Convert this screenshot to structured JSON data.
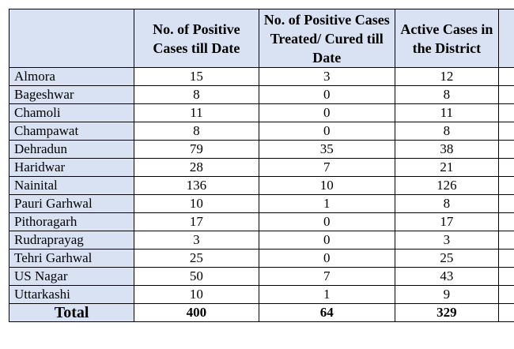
{
  "headers": {
    "district": "",
    "positive": "No. of Positive Cases till Date",
    "cured": "No. of Positive Cases Treated/ Cured till Date",
    "active": "Active Cases in the District"
  },
  "rows": [
    {
      "district": "Almora",
      "positive": "15",
      "cured": "3",
      "active": "12"
    },
    {
      "district": "Bageshwar",
      "positive": "8",
      "cured": "0",
      "active": "8"
    },
    {
      "district": "Chamoli",
      "positive": "11",
      "cured": "0",
      "active": "11"
    },
    {
      "district": "Champawat",
      "positive": "8",
      "cured": "0",
      "active": "8"
    },
    {
      "district": "Dehradun",
      "positive": "79",
      "cured": "35",
      "active": "38"
    },
    {
      "district": "Haridwar",
      "positive": "28",
      "cured": "7",
      "active": "21"
    },
    {
      "district": "Nainital",
      "positive": "136",
      "cured": "10",
      "active": "126"
    },
    {
      "district": "Pauri Garhwal",
      "positive": "10",
      "cured": "1",
      "active": "8"
    },
    {
      "district": "Pithoragarh",
      "positive": "17",
      "cured": "0",
      "active": "17"
    },
    {
      "district": "Rudraprayag",
      "positive": "3",
      "cured": "0",
      "active": "3"
    },
    {
      "district": "Tehri Garhwal",
      "positive": "25",
      "cured": "0",
      "active": "25"
    },
    {
      "district": "US Nagar",
      "positive": "50",
      "cured": "7",
      "active": "43"
    },
    {
      "district": "Uttarkashi",
      "positive": "10",
      "cured": "1",
      "active": "9"
    }
  ],
  "total": {
    "label": "Total",
    "positive": "400",
    "cured": "64",
    "active": "329"
  },
  "colors": {
    "header_fill": "#d9e2f3",
    "border": "#000000"
  }
}
